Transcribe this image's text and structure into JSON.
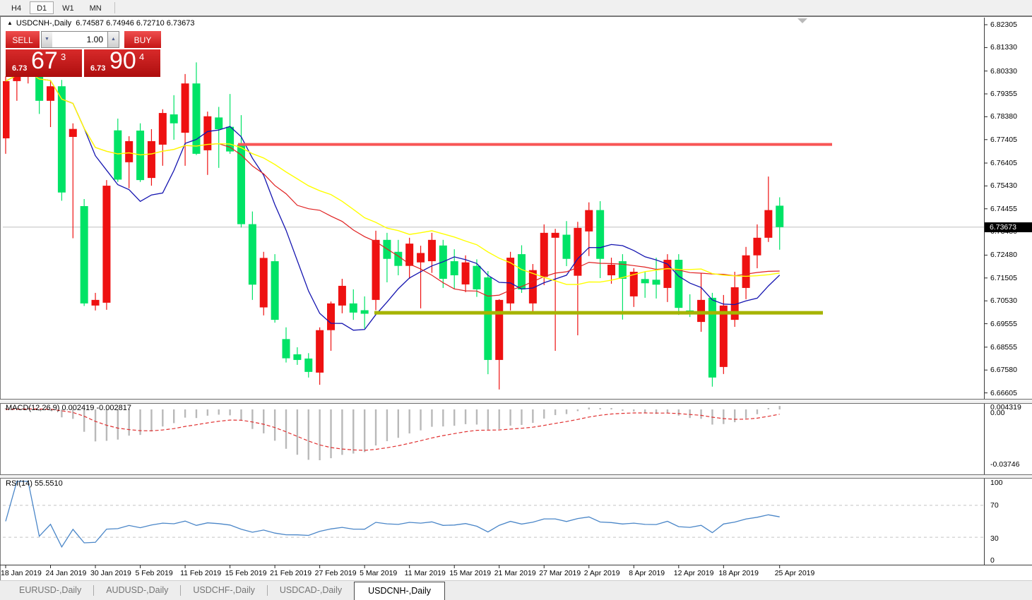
{
  "toolbar": {
    "timeframes": [
      {
        "label": "H4",
        "active": false
      },
      {
        "label": "D1",
        "active": true
      },
      {
        "label": "W1",
        "active": false
      },
      {
        "label": "MN",
        "active": false
      }
    ]
  },
  "chart_header": {
    "collapse_icon": "▲",
    "title": "USDCNH-,Daily",
    "ohlc_text": "6.74587 6.74946 6.72710 6.73673"
  },
  "trade_panel": {
    "sell_label": "SELL",
    "buy_label": "BUY",
    "volume": "1.00",
    "spin_down_icon": "▼",
    "spin_up_icon": "▲",
    "sell_price_small": "6.73",
    "sell_price_big": "67",
    "sell_price_sup": "3",
    "buy_price_small": "6.73",
    "buy_price_big": "90",
    "buy_price_sup": "4"
  },
  "price_scale": {
    "ticks": [
      "6.82305",
      "6.81330",
      "6.80330",
      "6.79355",
      "6.78380",
      "6.77405",
      "6.76405",
      "6.75430",
      "6.74455",
      "6.73480",
      "6.72480",
      "6.71505",
      "6.70530",
      "6.69555",
      "6.68555",
      "6.67580",
      "6.66605"
    ],
    "current_tag": "6.73673"
  },
  "macd_scale": {
    "top": "0.004319",
    "zero": "0.00",
    "bottom": "-0.03746"
  },
  "rsi_scale": {
    "t100": "100",
    "t70": "70",
    "t30": "30",
    "t0": "0"
  },
  "bottom_tabs": [
    {
      "label": "EURUSD-,Daily",
      "active": false
    },
    {
      "label": "AUDUSD-,Daily",
      "active": false
    },
    {
      "label": "USDCHF-,Daily",
      "active": false
    },
    {
      "label": "USDCAD-,Daily",
      "active": false
    },
    {
      "label": "USDCNH-,Daily",
      "active": true
    }
  ],
  "chart_data": {
    "type": "candlestick",
    "symbol": "USDCNH-",
    "timeframe": "Daily",
    "current_bar": {
      "open": 6.74587,
      "high": 6.74946,
      "low": 6.7271,
      "close": 6.73673
    },
    "bid_price": 6.73673,
    "color_convention": "red=up green=down",
    "up_color": "#ee1111",
    "down_color": "#00e366",
    "y_ticks": [
      6.82305,
      6.8133,
      6.8033,
      6.79355,
      6.7838,
      6.77405,
      6.76405,
      6.7543,
      6.74455,
      6.7348,
      6.7248,
      6.71505,
      6.7053,
      6.69555,
      6.68555,
      6.6758,
      6.66605
    ],
    "levels": [
      {
        "name": "resistance-line",
        "price": 6.772,
        "color": "#f85555",
        "width": 4,
        "x_start": 337,
        "x_end": 1178
      },
      {
        "name": "support-line",
        "price": 6.7002,
        "color": "#a6b400",
        "width": 5,
        "x_start": 530,
        "x_end": 1165
      }
    ],
    "x_labels": [
      {
        "text": "18 Jan 2019",
        "i": 0
      },
      {
        "text": "24 Jan 2019",
        "i": 4
      },
      {
        "text": "30 Jan 2019",
        "i": 8
      },
      {
        "text": "5 Feb 2019",
        "i": 12
      },
      {
        "text": "11 Feb 2019",
        "i": 16
      },
      {
        "text": "15 Feb 2019",
        "i": 20
      },
      {
        "text": "21 Feb 2019",
        "i": 24
      },
      {
        "text": "27 Feb 2019",
        "i": 28
      },
      {
        "text": "5 Mar 2019",
        "i": 32
      },
      {
        "text": "11 Mar 2019",
        "i": 36
      },
      {
        "text": "15 Mar 2019",
        "i": 40
      },
      {
        "text": "21 Mar 2019",
        "i": 44
      },
      {
        "text": "27 Mar 2019",
        "i": 48
      },
      {
        "text": "2 Apr 2019",
        "i": 52
      },
      {
        "text": "8 Apr 2019",
        "i": 56
      },
      {
        "text": "12 Apr 2019",
        "i": 60
      },
      {
        "text": "18 Apr 2019",
        "i": 64
      },
      {
        "text": "25 Apr 2019",
        "i": 69
      }
    ],
    "candle_columns": [
      "date",
      "open",
      "high",
      "low",
      "close"
    ],
    "candles": [
      [
        "2019-01-18",
        6.7746,
        6.801,
        6.768,
        6.799
      ],
      [
        "2019-01-21",
        6.799,
        6.807,
        6.7906,
        6.804
      ],
      [
        "2019-01-22",
        6.804,
        6.809,
        6.798,
        6.806
      ],
      [
        "2019-01-23",
        6.806,
        6.8085,
        6.785,
        6.7906
      ],
      [
        "2019-01-24",
        6.7906,
        6.799,
        6.7794,
        6.7968
      ],
      [
        "2019-01-25",
        6.7968,
        6.7995,
        6.748,
        6.7515
      ],
      [
        "2019-01-28",
        6.7752,
        6.781,
        6.732,
        6.7786
      ],
      [
        "2019-01-29",
        6.7457,
        6.7487,
        6.7031,
        6.7042
      ],
      [
        "2019-01-30",
        6.7033,
        6.7087,
        6.7012,
        6.7057
      ],
      [
        "2019-01-31",
        6.7045,
        6.7568,
        6.7015,
        6.7544
      ],
      [
        "2019-02-01",
        6.778,
        6.783,
        6.756,
        6.757
      ],
      [
        "2019-02-04",
        6.7644,
        6.7755,
        6.7533,
        6.7734
      ],
      [
        "2019-02-05",
        6.7779,
        6.781,
        6.756,
        6.7568
      ],
      [
        "2019-02-06",
        6.7577,
        6.7785,
        6.7544,
        6.7734
      ],
      [
        "2019-02-07",
        6.7719,
        6.787,
        6.7629,
        6.7854
      ],
      [
        "2019-02-08",
        6.7848,
        6.793,
        6.774,
        6.781
      ],
      [
        "2019-02-11",
        6.777,
        6.802,
        6.7629,
        6.798
      ],
      [
        "2019-02-12",
        6.798,
        6.807,
        6.7675,
        6.768
      ],
      [
        "2019-02-13",
        6.7695,
        6.786,
        6.759,
        6.784
      ],
      [
        "2019-02-14",
        6.7835,
        6.788,
        6.762,
        6.7785
      ],
      [
        "2019-02-15",
        6.7795,
        6.7935,
        6.768,
        6.769
      ],
      [
        "2019-02-18",
        6.772,
        6.7845,
        6.7366,
        6.738
      ],
      [
        "2019-02-19",
        6.738,
        6.7434,
        6.7057,
        6.7122
      ],
      [
        "2019-02-20",
        6.7025,
        6.7262,
        6.6991,
        6.7236
      ],
      [
        "2019-02-21",
        6.7222,
        6.7252,
        6.696,
        6.6972
      ],
      [
        "2019-02-22",
        6.689,
        6.694,
        6.679,
        6.6808
      ],
      [
        "2019-02-25",
        6.6825,
        6.6855,
        6.678,
        6.6801
      ],
      [
        "2019-02-26",
        6.6807,
        6.683,
        6.6726,
        6.675
      ],
      [
        "2019-02-27",
        6.6747,
        6.694,
        6.6695,
        6.6928
      ],
      [
        "2019-02-28",
        6.6928,
        6.705,
        6.684,
        6.7042
      ],
      [
        "2019-03-01",
        6.7033,
        6.7147,
        6.7,
        6.7117
      ],
      [
        "2019-03-04",
        6.7042,
        6.7102,
        6.6972,
        6.7003
      ],
      [
        "2019-03-05",
        6.7013,
        6.7072,
        6.6935,
        6.6998
      ],
      [
        "2019-03-06",
        6.7057,
        6.7352,
        6.7013,
        6.7313
      ],
      [
        "2019-03-07",
        6.7313,
        6.7343,
        6.7132,
        6.7232
      ],
      [
        "2019-03-08",
        6.7262,
        6.7313,
        6.7162,
        6.7202
      ],
      [
        "2019-03-11",
        6.7202,
        6.7322,
        6.7147,
        6.7297
      ],
      [
        "2019-03-12",
        6.7217,
        6.7288,
        6.7021,
        6.7257
      ],
      [
        "2019-03-13",
        6.7222,
        6.7343,
        6.7172,
        6.7313
      ],
      [
        "2019-03-14",
        6.7289,
        6.7313,
        6.7108,
        6.7147
      ],
      [
        "2019-03-15",
        6.7222,
        6.7273,
        6.7102,
        6.7162
      ],
      [
        "2019-03-18",
        6.7123,
        6.7247,
        6.709,
        6.7217
      ],
      [
        "2019-03-19",
        6.7202,
        6.723,
        6.707,
        6.7102
      ],
      [
        "2019-03-20",
        6.7153,
        6.718,
        6.674,
        6.6801
      ],
      [
        "2019-03-21",
        6.6801,
        6.706,
        6.6675,
        6.7057
      ],
      [
        "2019-03-22",
        6.7042,
        6.7262,
        6.7012,
        6.7237
      ],
      [
        "2019-03-25",
        6.7252,
        6.729,
        6.7087,
        6.7102
      ],
      [
        "2019-03-26",
        6.7042,
        6.721,
        6.7,
        6.7184
      ],
      [
        "2019-03-27",
        6.7155,
        6.7379,
        6.712,
        6.7343
      ],
      [
        "2019-03-28",
        6.7322,
        6.736,
        6.684,
        6.7343
      ],
      [
        "2019-03-29",
        6.7335,
        6.7393,
        6.7201,
        6.7232
      ],
      [
        "2019-04-01",
        6.716,
        6.739,
        6.6906,
        6.7364
      ],
      [
        "2019-04-02",
        6.7349,
        6.7473,
        6.7244,
        6.744
      ],
      [
        "2019-04-03",
        6.744,
        6.7478,
        6.715,
        6.7232
      ],
      [
        "2019-04-04",
        6.7162,
        6.7237,
        6.7126,
        6.7207
      ],
      [
        "2019-04-05",
        6.7222,
        6.7252,
        6.6973,
        6.7147
      ],
      [
        "2019-04-08",
        6.7072,
        6.7192,
        6.7027,
        6.7177
      ],
      [
        "2019-04-09",
        6.7146,
        6.7177,
        6.7066,
        6.7128
      ],
      [
        "2019-04-10",
        6.7143,
        6.7237,
        6.7063,
        6.7122
      ],
      [
        "2019-04-11",
        6.7108,
        6.7252,
        6.7048,
        6.7228
      ],
      [
        "2019-04-12",
        6.7228,
        6.7252,
        6.6993,
        6.7023
      ],
      [
        "2019-04-15",
        6.7012,
        6.7081,
        6.6984,
        6.6996
      ],
      [
        "2019-04-16",
        6.6963,
        6.7172,
        6.6921,
        6.7057
      ],
      [
        "2019-04-17",
        6.7066,
        6.7087,
        6.6687,
        6.6726
      ],
      [
        "2019-04-18",
        6.6771,
        6.7078,
        6.6741,
        6.7033
      ],
      [
        "2019-04-19",
        6.6972,
        6.7177,
        6.6942,
        6.7111
      ],
      [
        "2019-04-22",
        6.7108,
        6.7283,
        6.706,
        6.7247
      ],
      [
        "2019-04-23",
        6.7247,
        6.7379,
        6.7192,
        6.7322
      ],
      [
        "2019-04-24",
        6.7322,
        6.7583,
        6.7304,
        6.744
      ],
      [
        "2019-04-25",
        6.74587,
        6.74946,
        6.7271,
        6.73673
      ]
    ],
    "moving_averages": [
      {
        "name": "ma-fast",
        "period": 8,
        "color": "#1414b0",
        "width": 1.3
      },
      {
        "name": "ma-mid",
        "period": 20,
        "color": "#e02020",
        "width": 1.2
      },
      {
        "name": "ma-slow",
        "period": 30,
        "color": "#ffff00",
        "width": 1.4
      }
    ],
    "indicators": {
      "macd": {
        "label": "MACD(12,26,9)",
        "params": [
          12,
          26,
          9
        ],
        "value_str": "0.002419",
        "signal_str": "-0.002817",
        "value": 0.002419,
        "signal": -0.002817,
        "scale_top": 0.004319,
        "scale_bottom": -0.03746,
        "histogram_color": "#b9b9b9",
        "signal_color": "#e03030"
      },
      "rsi": {
        "label": "RSI(14)",
        "period": 14,
        "value_str": "55.5510",
        "value": 55.551,
        "levels": [
          70,
          30
        ],
        "color": "#4a86c8",
        "level_color": "#c4c4c4"
      }
    },
    "bid_line_color": "#c0c0c0"
  }
}
